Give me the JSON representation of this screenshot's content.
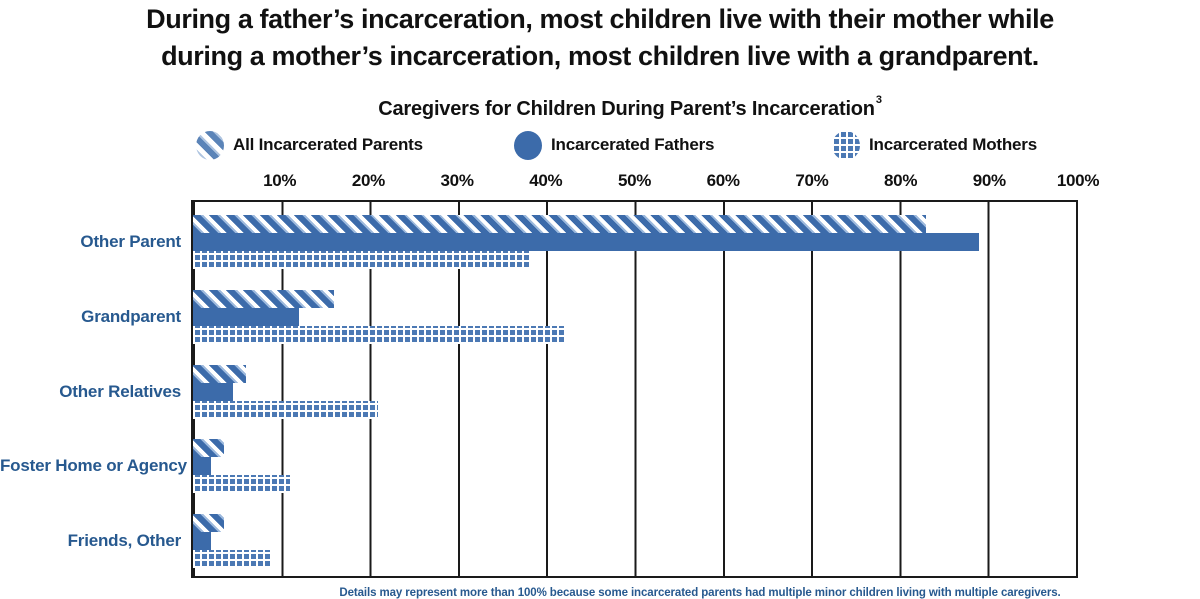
{
  "title": {
    "line1": "During a father’s incarceration, most children live with their mother while",
    "line2": "during a mother’s incarceration, most children live with a grandparent."
  },
  "subtitle": {
    "text": "Caregivers for Children During Parent’s Incarceration",
    "superscript": "3"
  },
  "legend": {
    "items": [
      {
        "label": "All Incarcerated Parents",
        "pattern": "diagonal-stripes"
      },
      {
        "label": "Incarcerated Fathers",
        "pattern": "solid"
      },
      {
        "label": "Incarcerated Mothers",
        "pattern": "grid"
      }
    ]
  },
  "axis": {
    "ticks": [
      "10%",
      "20%",
      "30%",
      "40%",
      "50%",
      "60%",
      "70%",
      "80%",
      "90%",
      "100%"
    ]
  },
  "chart_data": {
    "type": "bar",
    "orientation": "horizontal",
    "title": "Caregivers for Children During Parent’s Incarceration",
    "xlabel": "",
    "ylabel": "",
    "xlim": [
      0,
      100
    ],
    "grid": true,
    "legend_position": "top",
    "categories": [
      "Other Parent",
      "Grandparent",
      "Other Relatives",
      "Foster Home or Agency",
      "Friends, Other"
    ],
    "series": [
      {
        "name": "All Incarcerated Parents",
        "pattern": "diagonal-stripes",
        "values": [
          83,
          16,
          6,
          3.5,
          3.5
        ]
      },
      {
        "name": "Incarcerated Fathers",
        "pattern": "solid",
        "values": [
          89,
          12,
          4.5,
          2,
          2
        ]
      },
      {
        "name": "Incarcerated Mothers",
        "pattern": "grid",
        "values": [
          38,
          42,
          21,
          11,
          9
        ]
      }
    ]
  },
  "footnote": "Details may represent more than 100% because some incarcerated parents had multiple minor children living with multiple caregivers.",
  "colors": {
    "bar_blue": "#3c6baa",
    "grid_bar_blue": "#4c79b4",
    "category_label_blue": "#27598f",
    "text_black": "#111111"
  }
}
